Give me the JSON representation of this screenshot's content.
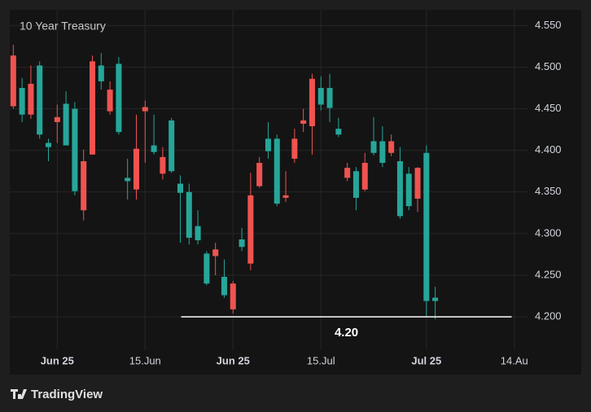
{
  "chart_data": {
    "type": "candlestick",
    "title": "10 Year Treasury",
    "open": [
      4.514,
      4.443,
      4.48,
      4.419,
      4.404,
      4.44,
      4.406,
      4.351,
      4.387,
      4.507,
      4.483,
      4.473,
      4.422,
      4.363,
      4.402,
      4.452,
      4.398,
      4.392,
      4.375,
      4.349,
      4.295,
      4.292,
      4.24,
      4.281,
      4.226,
      4.24,
      4.284,
      4.346,
      4.385,
      4.399,
      4.336,
      4.346,
      4.414,
      4.436,
      4.486,
      4.455,
      4.451,
      4.419,
      4.379,
      4.343,
      4.385,
      4.397,
      4.385,
      4.411,
      4.321,
      4.333,
      4.379,
      4.219,
      4.219
    ],
    "high": [
      4.527,
      4.487,
      4.502,
      4.507,
      4.414,
      4.455,
      4.471,
      4.458,
      4.401,
      4.514,
      4.517,
      4.483,
      4.512,
      4.39,
      4.443,
      4.46,
      4.443,
      4.404,
      4.439,
      4.37,
      4.36,
      4.328,
      4.279,
      4.289,
      4.269,
      4.243,
      4.307,
      4.373,
      4.392,
      4.434,
      4.419,
      4.375,
      4.426,
      4.45,
      4.492,
      4.489,
      4.492,
      4.439,
      4.385,
      4.38,
      4.397,
      4.44,
      4.429,
      4.419,
      4.404,
      4.38,
      4.38,
      4.406,
      4.236
    ],
    "low": [
      4.45,
      4.434,
      4.438,
      4.414,
      4.387,
      4.409,
      4.406,
      4.346,
      4.316,
      4.395,
      4.473,
      4.443,
      4.419,
      4.341,
      4.341,
      4.385,
      4.395,
      4.365,
      4.373,
      4.289,
      4.287,
      4.287,
      4.238,
      4.25,
      4.223,
      4.204,
      4.279,
      4.256,
      4.355,
      4.39,
      4.333,
      4.338,
      4.385,
      4.422,
      4.395,
      4.448,
      4.434,
      4.416,
      4.363,
      4.328,
      4.351,
      4.394,
      4.38,
      4.393,
      4.318,
      4.328,
      4.326,
      4.201,
      4.197
    ],
    "close": [
      4.453,
      4.475,
      4.443,
      4.502,
      4.409,
      4.434,
      4.456,
      4.45,
      4.328,
      4.395,
      4.502,
      4.447,
      4.504,
      4.367,
      4.353,
      4.447,
      4.406,
      4.372,
      4.436,
      4.36,
      4.35,
      4.309,
      4.276,
      4.273,
      4.248,
      4.209,
      4.293,
      4.264,
      4.357,
      4.414,
      4.414,
      4.343,
      4.39,
      4.432,
      4.429,
      4.475,
      4.475,
      4.426,
      4.367,
      4.375,
      4.353,
      4.411,
      4.411,
      4.397,
      4.387,
      4.372,
      4.342,
      4.397,
      4.223
    ],
    "up_color": "#26a69a",
    "down_color": "#ef5350",
    "ylim": [
      4.16,
      4.567
    ],
    "yticks": [
      {
        "value": 4.55,
        "label": "4.550"
      },
      {
        "value": 4.5,
        "label": "4.500"
      },
      {
        "value": 4.45,
        "label": "4.450"
      },
      {
        "value": 4.4,
        "label": "4.400"
      },
      {
        "value": 4.35,
        "label": "4.350"
      },
      {
        "value": 4.3,
        "label": "4.300"
      },
      {
        "value": 4.25,
        "label": "4.250"
      },
      {
        "value": 4.2,
        "label": "4.200"
      }
    ],
    "xlim": [
      -0.4,
      58.5
    ],
    "xticks": [
      {
        "value": 5,
        "label": "Jun 25"
      },
      {
        "value": 15,
        "label": "15.Jun"
      },
      {
        "value": 25,
        "label": "Jun 25"
      },
      {
        "value": 35,
        "label": "15.Jul"
      },
      {
        "value": 47,
        "label": "Jul 25"
      },
      {
        "value": 57,
        "label": "14.Au"
      }
    ],
    "grid": true,
    "hline": {
      "y": 4.2,
      "label": "4.20",
      "x": [
        19.1,
        56.7
      ]
    }
  },
  "footer": {
    "brand": "TradingView"
  }
}
